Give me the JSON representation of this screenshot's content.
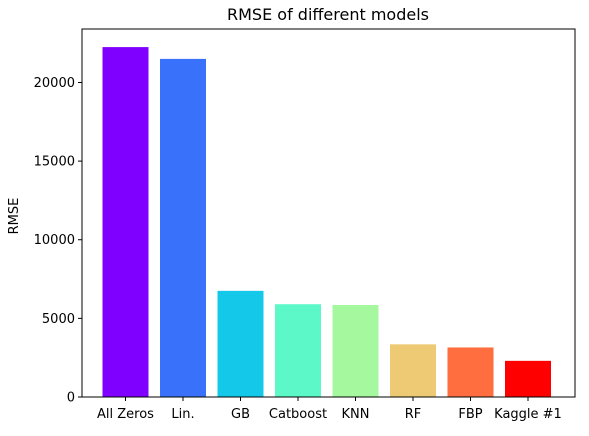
{
  "chart_data": {
    "type": "bar",
    "title": "RMSE of different models",
    "xlabel": "",
    "ylabel": "RMSE",
    "categories": [
      "All Zeros",
      "Lin.",
      "GB",
      "Catboost",
      "KNN",
      "RF",
      "FBP",
      "Kaggle #1"
    ],
    "values": [
      22250,
      21500,
      6750,
      5900,
      5850,
      3350,
      3150,
      2300
    ],
    "colors": [
      "#8000ff",
      "#3a71fa",
      "#13c8e8",
      "#5cf8c8",
      "#a6f89f",
      "#eeca74",
      "#ff6e3e",
      "#ff0000"
    ],
    "ylim": [
      0,
      23400
    ],
    "yticks": [
      0,
      5000,
      10000,
      15000,
      20000
    ],
    "ytick_labels": [
      "0",
      "5000",
      "10000",
      "15000",
      "20000"
    ],
    "grid": false,
    "legend": "none"
  }
}
